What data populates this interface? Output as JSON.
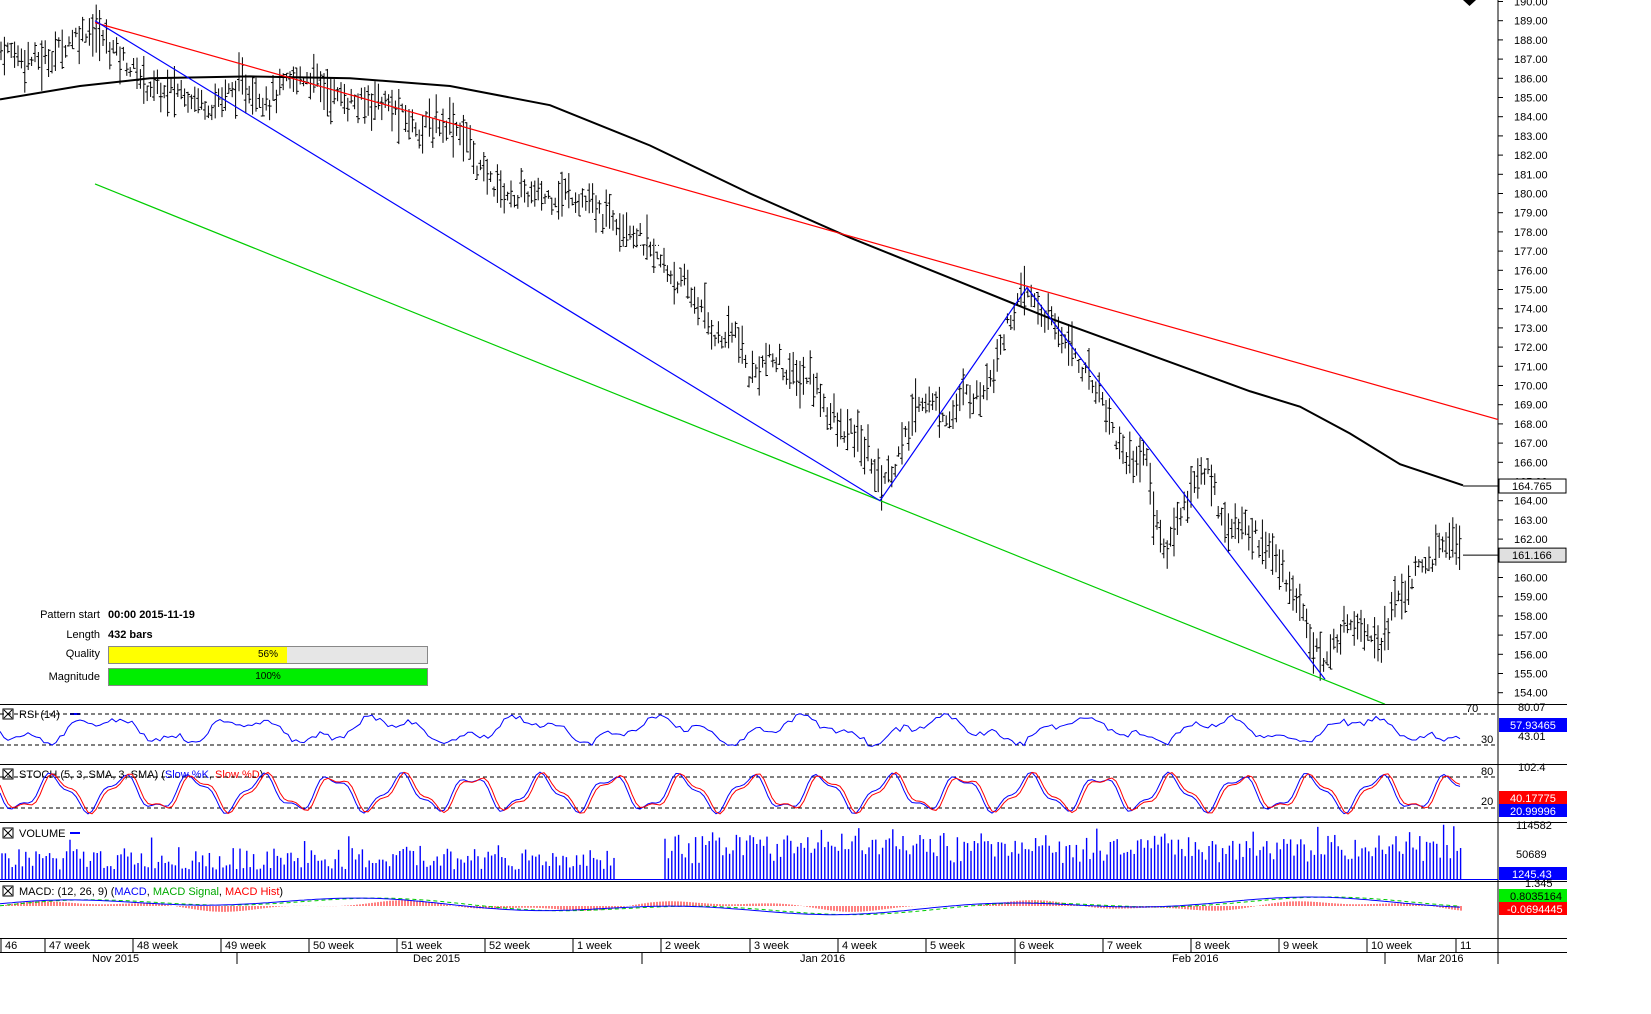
{
  "pattern_info": {
    "pattern_start_label": "Pattern start",
    "pattern_start_value": "00:00 2015-11-19",
    "length_label": "Length",
    "length_value": "432 bars",
    "quality_label": "Quality",
    "quality_value": "56%",
    "quality_fraction": 0.56,
    "quality_color": "#ffff00",
    "magnitude_label": "Magnitude",
    "magnitude_value": "100%",
    "magnitude_fraction": 1.0,
    "magnitude_color": "#00ee00"
  },
  "chart_data": {
    "type": "line",
    "title": "",
    "instrument_chart": "price bars (OHLC)",
    "price_axis": {
      "ticks": [
        154.0,
        155.0,
        156.0,
        157.0,
        158.0,
        159.0,
        160.0,
        161.0,
        162.0,
        163.0,
        164.0,
        165.0,
        166.0,
        167.0,
        168.0,
        169.0,
        170.0,
        171.0,
        172.0,
        173.0,
        174.0,
        175.0,
        176.0,
        177.0,
        178.0,
        179.0,
        180.0,
        181.0,
        182.0,
        183.0,
        184.0,
        185.0,
        186.0,
        187.0,
        188.0,
        189.0,
        190.0
      ],
      "ylim": [
        153.4,
        190.0
      ],
      "markers": [
        {
          "label": "164.765",
          "value": 164.765,
          "style": "outlined"
        },
        {
          "label": "161.166",
          "value": 161.166,
          "style": "grey"
        }
      ]
    },
    "x_axis": {
      "week_labels": [
        "46",
        "47 week",
        "48 week",
        "49 week",
        "50 week",
        "51 week",
        "52 week",
        "1 week",
        "2 week",
        "3 week",
        "4 week",
        "5 week",
        "6 week",
        "7 week",
        "8 week",
        "9 week",
        "10 week",
        "11"
      ],
      "month_labels": [
        "Nov 2015",
        "Dec 2015",
        "Jan 2016",
        "Feb 2016",
        "Mar 2016"
      ]
    },
    "price_path": [
      [
        0,
        187.5
      ],
      [
        15,
        187.3
      ],
      [
        30,
        187.0
      ],
      [
        45,
        186.9
      ],
      [
        60,
        187.6
      ],
      [
        75,
        188.2
      ],
      [
        90,
        188.6
      ],
      [
        105,
        188.0
      ],
      [
        120,
        187.2
      ],
      [
        135,
        186.3
      ],
      [
        150,
        185.6
      ],
      [
        165,
        185.2
      ],
      [
        180,
        185.4
      ],
      [
        195,
        185.0
      ],
      [
        210,
        184.6
      ],
      [
        225,
        185.1
      ],
      [
        240,
        185.6
      ],
      [
        255,
        185.3
      ],
      [
        270,
        184.9
      ],
      [
        285,
        185.6
      ],
      [
        300,
        186.1
      ],
      [
        315,
        186.0
      ],
      [
        330,
        185.2
      ],
      [
        345,
        184.9
      ],
      [
        360,
        184.6
      ],
      [
        375,
        185.0
      ],
      [
        390,
        184.5
      ],
      [
        405,
        183.9
      ],
      [
        420,
        183.4
      ],
      [
        435,
        183.6
      ],
      [
        450,
        183.8
      ],
      [
        465,
        183.0
      ],
      [
        480,
        181.2
      ],
      [
        495,
        180.5
      ],
      [
        510,
        179.8
      ],
      [
        525,
        180.0
      ],
      [
        540,
        179.8
      ],
      [
        555,
        179.9
      ],
      [
        570,
        180.0
      ],
      [
        585,
        179.6
      ],
      [
        600,
        178.9
      ],
      [
        615,
        178.8
      ],
      [
        630,
        178.3
      ],
      [
        645,
        177.3
      ],
      [
        660,
        176.4
      ],
      [
        675,
        175.6
      ],
      [
        690,
        174.8
      ],
      [
        705,
        173.6
      ],
      [
        720,
        172.3
      ],
      [
        735,
        172.9
      ],
      [
        750,
        170.3
      ],
      [
        765,
        171.4
      ],
      [
        780,
        171.1
      ],
      [
        795,
        170.3
      ],
      [
        810,
        170.5
      ],
      [
        825,
        169.0
      ],
      [
        840,
        167.6
      ],
      [
        855,
        167.4
      ],
      [
        870,
        166.2
      ],
      [
        880,
        165.1
      ],
      [
        890,
        165.4
      ],
      [
        905,
        167.1
      ],
      [
        920,
        169.4
      ],
      [
        935,
        169.0
      ],
      [
        950,
        168.3
      ],
      [
        965,
        169.6
      ],
      [
        980,
        169.4
      ],
      [
        995,
        171.3
      ],
      [
        1010,
        173.5
      ],
      [
        1027,
        174.9
      ],
      [
        1040,
        173.9
      ],
      [
        1055,
        173.0
      ],
      [
        1070,
        172.3
      ],
      [
        1085,
        170.6
      ],
      [
        1100,
        169.8
      ],
      [
        1115,
        167.4
      ],
      [
        1130,
        166.0
      ],
      [
        1145,
        166.6
      ],
      [
        1155,
        163.2
      ],
      [
        1165,
        161.1
      ],
      [
        1180,
        163.4
      ],
      [
        1195,
        165.1
      ],
      [
        1210,
        165.4
      ],
      [
        1225,
        162.8
      ],
      [
        1240,
        162.6
      ],
      [
        1255,
        162.3
      ],
      [
        1270,
        161.3
      ],
      [
        1285,
        160.1
      ],
      [
        1300,
        158.6
      ],
      [
        1312,
        157.0
      ],
      [
        1325,
        155.2
      ],
      [
        1335,
        156.7
      ],
      [
        1350,
        157.9
      ],
      [
        1365,
        157.5
      ],
      [
        1380,
        156.6
      ],
      [
        1395,
        158.6
      ],
      [
        1410,
        159.8
      ],
      [
        1425,
        160.6
      ],
      [
        1440,
        161.5
      ],
      [
        1450,
        162.2
      ],
      [
        1463,
        161.2
      ]
    ],
    "moving_average": {
      "color": "#000000",
      "points": [
        [
          0,
          184.9
        ],
        [
          80,
          185.6
        ],
        [
          150,
          186.0
        ],
        [
          250,
          186.1
        ],
        [
          350,
          186.0
        ],
        [
          450,
          185.6
        ],
        [
          550,
          184.6
        ],
        [
          650,
          182.5
        ],
        [
          750,
          180.0
        ],
        [
          850,
          177.7
        ],
        [
          950,
          175.6
        ],
        [
          1050,
          173.5
        ],
        [
          1150,
          171.6
        ],
        [
          1250,
          169.7
        ],
        [
          1300,
          168.9
        ],
        [
          1350,
          167.5
        ],
        [
          1400,
          165.9
        ],
        [
          1463,
          164.8
        ]
      ]
    },
    "trendlines": [
      {
        "name": "",
        "color": "#ff0000",
        "points": [
          [
            95,
            188.9
          ],
          [
            1500,
            168.2
          ]
        ]
      },
      {
        "name": "",
        "color": "#00cc00",
        "points": [
          [
            95,
            180.5
          ],
          [
            1385,
            153.4
          ]
        ]
      },
      {
        "name": "",
        "color": "#0000ff",
        "points": [
          [
            95,
            189.0
          ],
          [
            880,
            164.0
          ],
          [
            1027,
            175.1
          ],
          [
            1325,
            154.7
          ]
        ]
      }
    ],
    "indicators": [
      {
        "id": "rsi",
        "label": "RSI (14)",
        "axis_ticks": [
          "80.07",
          "70",
          "43.01",
          "30"
        ],
        "value_label": "57.93465",
        "value_color": "#0000ff",
        "levels": [
          70,
          30
        ]
      },
      {
        "id": "stoch",
        "label": "STOCH (5, 3, SMA, 3, SMA) (",
        "series": [
          {
            "name": "Slow %K",
            "color": "#0000ff"
          },
          {
            "name": "Slow %D",
            "color": "#ff0000"
          }
        ],
        "axis_ticks": [
          "80",
          "102.4",
          "20"
        ],
        "value_labels": [
          {
            "label": "40.17775",
            "color": "#ff0000"
          },
          {
            "label": "20.99996",
            "color": "#0000ff"
          }
        ],
        "levels": [
          80,
          20
        ]
      },
      {
        "id": "volume",
        "label": "VOLUME",
        "axis_ticks": [
          "114582",
          "50689"
        ],
        "value_label": "1245.43",
        "value_color": "#0000ff"
      },
      {
        "id": "macd",
        "label": "MACD: (12, 26, 9) (",
        "series": [
          {
            "name": "MACD",
            "color": "#0000ff"
          },
          {
            "name": "MACD Signal",
            "color": "#00cc00"
          },
          {
            "name": "MACD Hist",
            "color": "#ff0000"
          }
        ],
        "axis_ticks": [
          "1.345"
        ],
        "value_labels": [
          {
            "label": "0.8035164",
            "color": "#00cc00"
          },
          {
            "label": "-0.0694445",
            "color": "#ff0000"
          }
        ]
      }
    ]
  }
}
